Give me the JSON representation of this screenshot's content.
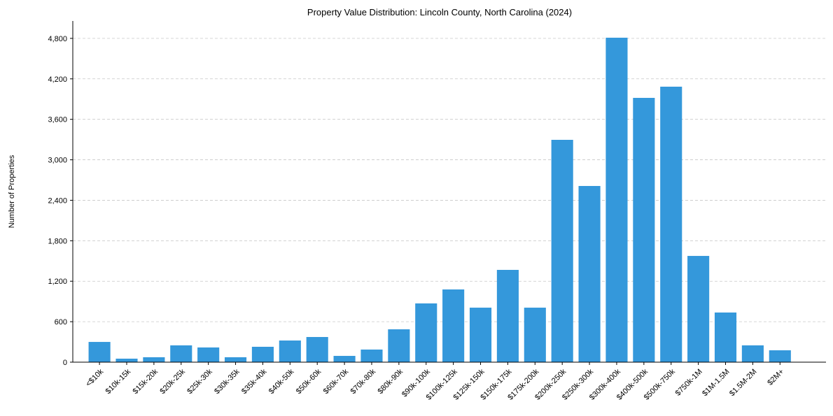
{
  "chart_data": {
    "type": "bar",
    "title": "Property Value Distribution: Lincoln County, North Carolina (2024)",
    "xlabel": "",
    "ylabel": "Number of Properties",
    "categories": [
      "<$10k",
      "$10k-15k",
      "$15k-20k",
      "$20k-25k",
      "$25k-30k",
      "$30k-35k",
      "$35k-40k",
      "$40k-50k",
      "$50k-60k",
      "$60k-70k",
      "$70k-80k",
      "$80k-90k",
      "$90k-100k",
      "$100k-125k",
      "$125k-150k",
      "$150k-175k",
      "$175k-200k",
      "$200k-250k",
      "$250k-300k",
      "$300k-400k",
      "$400k-500k",
      "$500k-750k",
      "$750k-1M",
      "$1M-1.5M",
      "$1.5M-2M",
      "$2M+"
    ],
    "values": [
      300,
      52,
      73,
      249,
      218,
      73,
      228,
      321,
      373,
      93,
      187,
      487,
      871,
      1078,
      808,
      1368,
      808,
      3296,
      2612,
      4810,
      3918,
      4084,
      1575,
      736,
      249,
      176
    ],
    "ylim": [
      0,
      5058
    ],
    "yticks": [
      0,
      600,
      1200,
      1800,
      2400,
      3000,
      3600,
      4200,
      4800
    ],
    "ytick_labels": [
      "0",
      "600",
      "1,200",
      "1,800",
      "2,400",
      "3,000",
      "3,600",
      "4,200",
      "4,800"
    ],
    "grid": "y-dashed",
    "bar_color": "#3498db"
  }
}
